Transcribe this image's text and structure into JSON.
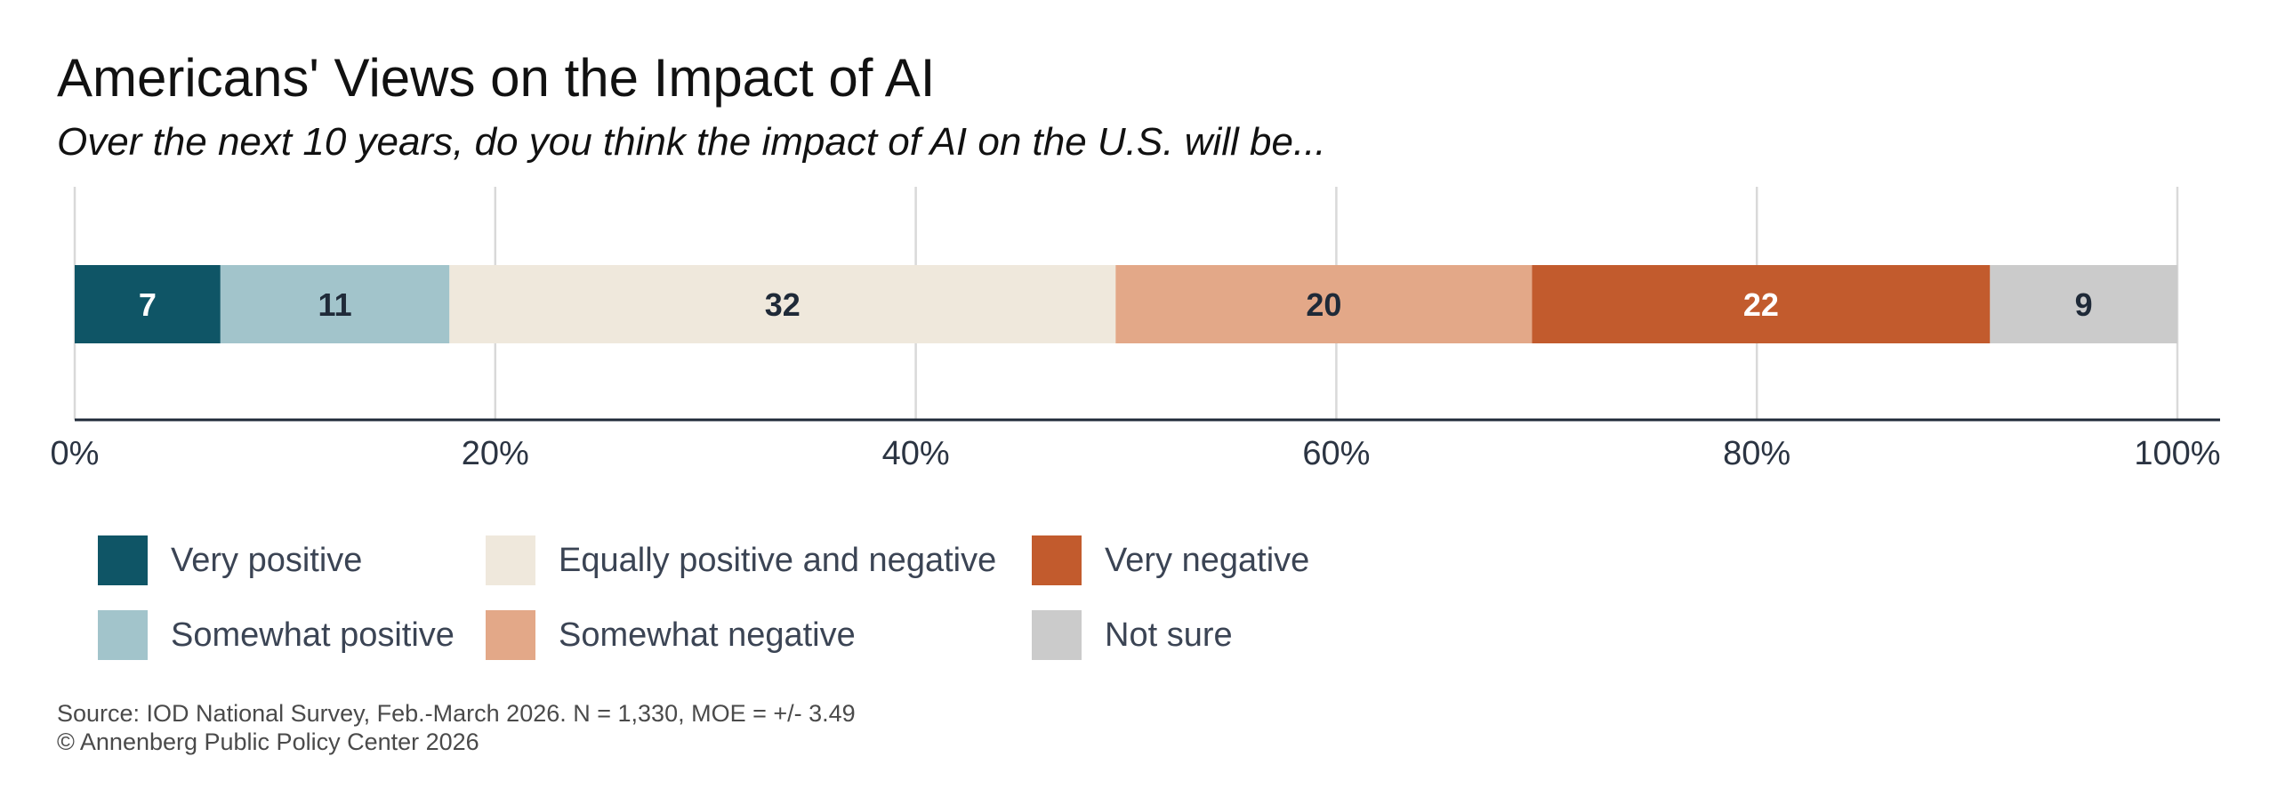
{
  "chart_data": {
    "type": "bar",
    "orientation": "horizontal",
    "stacked": true,
    "title": "Americans' Views on the Impact of AI",
    "subtitle": "Over the next 10 years, do you think the impact of AI on the U.S. will be...",
    "xlabel": "",
    "ylabel": "",
    "xlim": [
      0,
      100
    ],
    "x_ticks": [
      "0%",
      "20%",
      "40%",
      "60%",
      "80%",
      "100%"
    ],
    "grid": true,
    "legend_position": "bottom",
    "series": [
      {
        "name": "Very positive",
        "value": 7,
        "label": "7",
        "color": "#0f5566",
        "label_color": "#ffffff"
      },
      {
        "name": "Somewhat positive",
        "value": 11,
        "label": "11",
        "color": "#a2c4cb",
        "label_color": "#1f2a38"
      },
      {
        "name": "Equally positive and negative",
        "value": 32,
        "label": "32",
        "color": "#efe8dc",
        "label_color": "#1f2a38"
      },
      {
        "name": "Somewhat negative",
        "value": 20,
        "label": "20",
        "color": "#e3a888",
        "label_color": "#1f2a38"
      },
      {
        "name": "Very negative",
        "value": 22,
        "label": "22",
        "color": "#c25b2d",
        "label_color": "#ffffff"
      },
      {
        "name": "Not sure",
        "value": 9,
        "label": "9",
        "color": "#cbcbcb",
        "label_color": "#1f2a38"
      }
    ]
  },
  "source": {
    "line1": "Source: IOD National Survey, Feb.-March 2026. N = 1,330, MOE = +/- 3.49",
    "line2": "© Annenberg Public Policy Center 2026"
  }
}
